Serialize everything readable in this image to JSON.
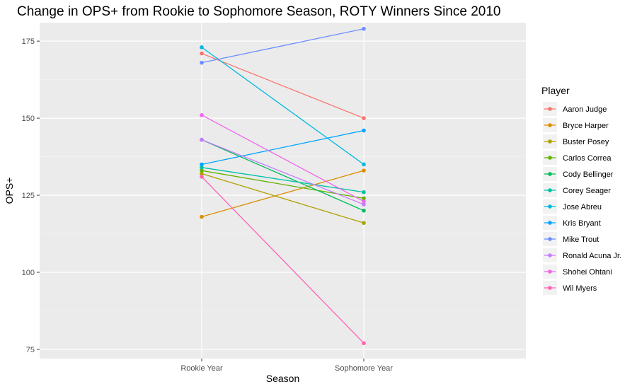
{
  "chart_data": {
    "type": "line",
    "title": "Change in OPS+ from Rookie to Sophomore Season, ROTY Winners Since 2010",
    "xlabel": "Season",
    "ylabel": "OPS+",
    "categories": [
      "Rookie Year",
      "Sophomore Year"
    ],
    "ylim": [
      72,
      181
    ],
    "yticks": [
      75,
      100,
      125,
      150,
      175
    ],
    "grid": true,
    "legend": {
      "title": "Player",
      "position": "right"
    },
    "series": [
      {
        "name": "Aaron Judge",
        "values": [
          171,
          150
        ],
        "color": "#F8766D"
      },
      {
        "name": "Bryce Harper",
        "values": [
          118,
          133
        ],
        "color": "#DB8E00"
      },
      {
        "name": "Buster Posey",
        "values": [
          132,
          116
        ],
        "color": "#AEA200"
      },
      {
        "name": "Carlos Correa",
        "values": [
          133,
          124
        ],
        "color": "#64B200"
      },
      {
        "name": "Cody Bellinger",
        "values": [
          143,
          120
        ],
        "color": "#00BD5C"
      },
      {
        "name": "Corey Seager",
        "values": [
          134,
          126
        ],
        "color": "#00C1A7"
      },
      {
        "name": "Jose Abreu",
        "values": [
          173,
          135
        ],
        "color": "#00BADE"
      },
      {
        "name": "Kris Bryant",
        "values": [
          135,
          146
        ],
        "color": "#00A6FF"
      },
      {
        "name": "Mike Trout",
        "values": [
          168,
          179
        ],
        "color": "#6C8EFF"
      },
      {
        "name": "Ronald Acuna Jr.",
        "values": [
          143,
          122
        ],
        "color": "#C77CFF"
      },
      {
        "name": "Shohei Ohtani",
        "values": [
          151,
          123
        ],
        "color": "#EF67EB"
      },
      {
        "name": "Wil Myers",
        "values": [
          131,
          77
        ],
        "color": "#FF63B6"
      }
    ]
  }
}
